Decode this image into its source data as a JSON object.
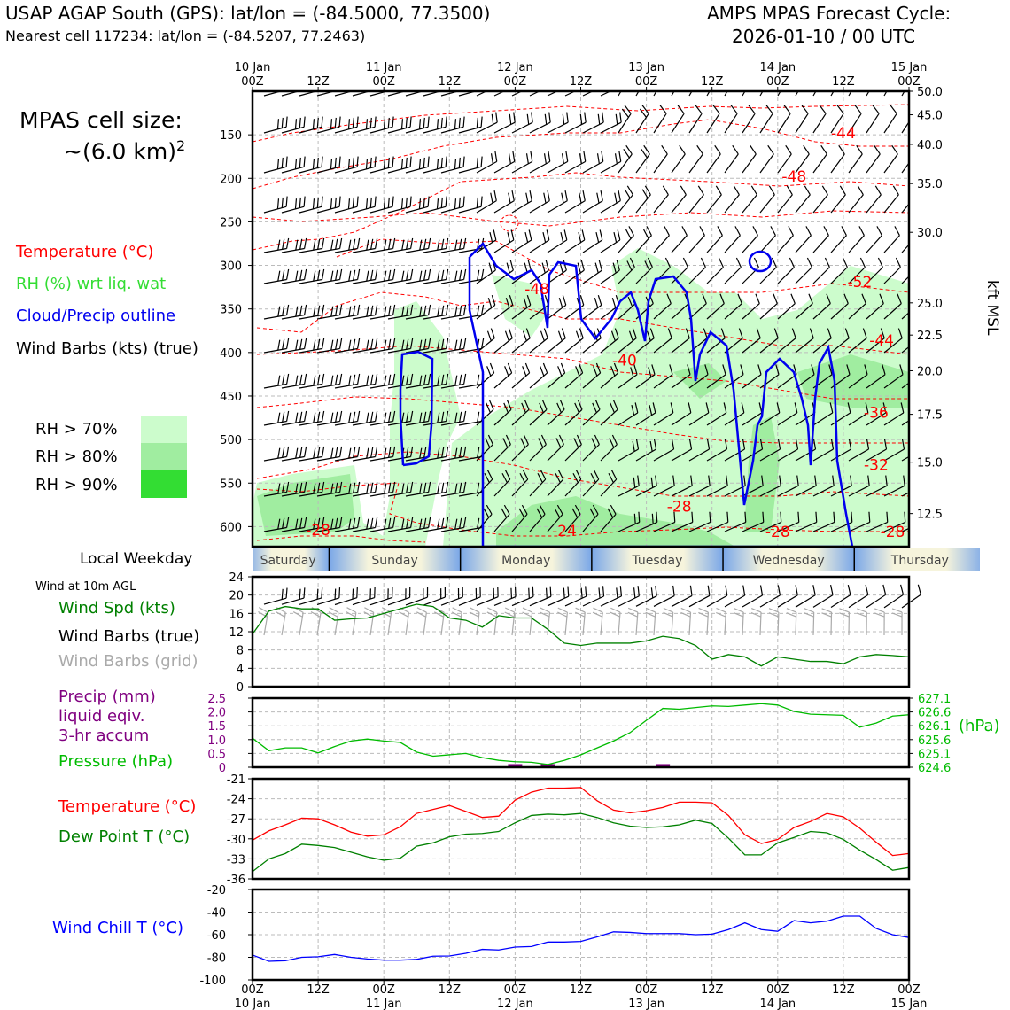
{
  "header": {
    "station": "USAP AGAP South (GPS): lat/lon = (-84.5000, 77.3500)",
    "nearest": "Nearest cell 117234: lat/lon = (-84.5207, 77.2463)",
    "model_line1": "AMPS MPAS Forecast Cycle:",
    "model_line2": "2026-01-10 / 00 UTC"
  },
  "legend": {
    "cell_size_line1": "MPAS cell size:",
    "cell_size_prefix": "~(6.0 km)",
    "cell_size_exp": "2",
    "temperature": "Temperature (°C)",
    "rh": "RH (%) wrt liq. wat",
    "cloud": "Cloud/Precip outline",
    "wind": "Wind Barbs (kts) (true)",
    "rh70": "RH > 70%",
    "rh80": "RH > 80%",
    "rh90": "RH > 90%",
    "weekday_title": "Local Weekday",
    "wind10m": "Wind at 10m AGL",
    "wind_spd": "Wind Spd (kts)",
    "wind_barbs_true": "Wind Barbs (true)",
    "wind_barbs_grid": "Wind Barbs (grid)",
    "precip1": "Precip (mm)",
    "precip2": "liquid eqiv.",
    "precip3": "3-hr accum",
    "pressure": "Pressure (hPa)",
    "temp2": "Temperature (°C)",
    "dewpoint": "Dew Point T (°C)",
    "windchill": "Wind Chill T (°C)",
    "kft": "kft MSL",
    "hpa": "(hPa)"
  },
  "colors": {
    "temperature": "#ff0000",
    "rh_label": "#33dd33",
    "cloud": "#0000ee",
    "rh70": "#ccfccc",
    "rh80": "#a0eda0",
    "rh90": "#33dd33",
    "wind_spd": "#008000",
    "precip": "#800080",
    "pressure": "#00bb00",
    "dewpoint": "#008000",
    "windchill": "#0000ff",
    "grid_barbs": "#aaaaaa"
  },
  "chart_data": [
    {
      "type": "time-height",
      "x_top_labels": [
        [
          "10 Jan",
          "00Z"
        ],
        [
          "",
          "12Z"
        ],
        [
          "11 Jan",
          "00Z"
        ],
        [
          "",
          "12Z"
        ],
        [
          "12 Jan",
          "00Z"
        ],
        [
          "",
          "12Z"
        ],
        [
          "13 Jan",
          "00Z"
        ],
        [
          "",
          "12Z"
        ],
        [
          "14 Jan",
          "00Z"
        ],
        [
          "",
          "12Z"
        ],
        [
          "15 Jan",
          "00Z"
        ]
      ],
      "pressure_ticks": [
        150,
        200,
        250,
        300,
        350,
        400,
        450,
        500,
        550,
        600
      ],
      "height_ticks": [
        "50.0",
        "45.0",
        "40.0",
        "35.0",
        "30.0",
        "25.0",
        "22.5",
        "20.0",
        "17.5",
        "15.0",
        "12.5"
      ],
      "height_tick_pressures": [
        100,
        127,
        161,
        206,
        262,
        343,
        380,
        421,
        471,
        526,
        585
      ],
      "ylim_hPa": [
        100,
        623
      ],
      "temperature_labels": [
        {
          "t": 108,
          "p": 154,
          "v": "-44"
        },
        {
          "t": 99,
          "p": 204,
          "v": "-48"
        },
        {
          "t": 52,
          "p": 333,
          "v": "-48"
        },
        {
          "t": 111,
          "p": 325,
          "v": "-52"
        },
        {
          "t": 115,
          "p": 392,
          "v": "-44"
        },
        {
          "t": 68,
          "p": 415,
          "v": "-40"
        },
        {
          "t": 114,
          "p": 475,
          "v": "-36"
        },
        {
          "t": 114,
          "p": 535,
          "v": "-32"
        },
        {
          "t": 78,
          "p": 583,
          "v": "-28"
        },
        {
          "t": 12,
          "p": 610,
          "v": "-28"
        },
        {
          "t": 57,
          "p": 611,
          "v": "-24"
        },
        {
          "t": 96,
          "p": 612,
          "v": "-28"
        },
        {
          "t": 117,
          "p": 612,
          "v": "-28"
        }
      ],
      "cloud_outline_note": "blue cloud/precip outline contours"
    },
    {
      "type": "weekday-band",
      "days": [
        "Saturday",
        "Sunday",
        "Monday",
        "Tuesday",
        "Wednesday",
        "Thursday"
      ],
      "day_boundaries_hours": [
        -1,
        14,
        38,
        62,
        86,
        110,
        134
      ]
    },
    {
      "type": "line",
      "title": "Wind Spd (kts)",
      "ylim": [
        0,
        24
      ],
      "yticks": [
        0,
        4,
        8,
        12,
        16,
        20,
        24
      ],
      "x_hours": [
        0,
        3,
        6,
        9,
        12,
        15,
        18,
        21,
        24,
        27,
        30,
        33,
        36,
        39,
        42,
        45,
        48,
        51,
        54,
        57,
        60,
        63,
        66,
        69,
        72,
        75,
        78,
        81,
        84,
        87,
        90,
        93,
        96,
        99,
        102,
        105,
        108,
        111,
        114,
        117,
        120
      ],
      "values": [
        11.5,
        16.5,
        17.5,
        17,
        17,
        14.5,
        14.8,
        15,
        16,
        17,
        18,
        17.5,
        15,
        14.5,
        13,
        15.5,
        15,
        15,
        12.5,
        9.5,
        9,
        9.5,
        9.5,
        9.5,
        10,
        11,
        10.5,
        9,
        6,
        7,
        6.5,
        4.5,
        6.5,
        6,
        5.5,
        5.5,
        5,
        6.5,
        7,
        6.8,
        6.5
      ]
    },
    {
      "type": "line",
      "title": "Pressure (hPa)",
      "precip_ylim": [
        0,
        2.5
      ],
      "precip_yticks": [
        0,
        0.5,
        1.0,
        1.5,
        2.0,
        2.5
      ],
      "pressure_ylim": [
        624.6,
        627.1
      ],
      "pressure_yticks": [
        624.6,
        625.1,
        625.6,
        626.1,
        626.6,
        627.1
      ],
      "precip_mm": {
        "x_hours": [
          48,
          54,
          75
        ],
        "values": [
          0.05,
          0.05,
          0.05
        ]
      },
      "x_hours": [
        0,
        3,
        6,
        9,
        12,
        15,
        18,
        21,
        24,
        27,
        30,
        33,
        36,
        39,
        42,
        45,
        48,
        51,
        54,
        57,
        60,
        63,
        66,
        69,
        72,
        75,
        78,
        81,
        84,
        87,
        90,
        93,
        96,
        99,
        102,
        105,
        108,
        111,
        114,
        117,
        120
      ],
      "values": [
        625.65,
        625.2,
        625.3,
        625.3,
        625.12,
        625.35,
        625.55,
        625.62,
        625.55,
        625.5,
        625.15,
        625.0,
        625.05,
        625.1,
        624.95,
        624.85,
        624.8,
        624.78,
        624.7,
        624.85,
        625.05,
        625.3,
        625.55,
        625.85,
        626.3,
        626.73,
        626.7,
        626.76,
        626.82,
        626.8,
        626.85,
        626.9,
        626.85,
        626.62,
        626.52,
        626.5,
        626.48,
        626.05,
        626.2,
        626.45,
        626.5
      ]
    },
    {
      "type": "line",
      "title": "Temperature (°C)",
      "ylim": [
        -36,
        -21
      ],
      "yticks": [
        -21,
        -24,
        -27,
        -30,
        -33,
        -36
      ],
      "x_hours": [
        0,
        3,
        6,
        9,
        12,
        15,
        18,
        21,
        24,
        27,
        30,
        33,
        36,
        39,
        42,
        45,
        48,
        51,
        54,
        57,
        60,
        63,
        66,
        69,
        72,
        75,
        78,
        81,
        84,
        87,
        90,
        93,
        96,
        99,
        102,
        105,
        108,
        111,
        114,
        117,
        120
      ],
      "series": [
        {
          "name": "Temperature (°C)",
          "values": [
            -30.2,
            -28.8,
            -27.9,
            -26.9,
            -27,
            -27.9,
            -29,
            -29.6,
            -29.4,
            -28.2,
            -26.2,
            -25.6,
            -25,
            -25.9,
            -26.8,
            -26.6,
            -24.2,
            -23,
            -22.4,
            -22.4,
            -22.3,
            -24.3,
            -25.7,
            -26.1,
            -25.8,
            -25.3,
            -24.5,
            -24.5,
            -24.6,
            -26.5,
            -29.4,
            -30.7,
            -30.1,
            -28.3,
            -27.4,
            -26.2,
            -26.7,
            -28.4,
            -30.5,
            -32.5,
            -32.2
          ]
        },
        {
          "name": "Dew Point T (°C)",
          "values": [
            -34.9,
            -33,
            -32.2,
            -30.8,
            -31,
            -31.3,
            -32,
            -32.7,
            -33.2,
            -32.9,
            -31.1,
            -30.6,
            -29.7,
            -29.3,
            -29.2,
            -28.9,
            -27.6,
            -26.5,
            -26.3,
            -26.4,
            -26.2,
            -26.8,
            -27.6,
            -28.1,
            -28.3,
            -28.2,
            -27.9,
            -27.2,
            -27.7,
            -29.9,
            -32.4,
            -32.4,
            -30.6,
            -29.8,
            -28.9,
            -29.1,
            -30.1,
            -31.7,
            -33.1,
            -34.7,
            -34.3
          ]
        }
      ]
    },
    {
      "type": "line",
      "title": "Wind Chill T (°C)",
      "ylim": [
        -100,
        -20
      ],
      "yticks": [
        -20,
        -40,
        -60,
        -80,
        -100
      ],
      "x_hours": [
        0,
        3,
        6,
        9,
        12,
        15,
        18,
        21,
        24,
        27,
        30,
        33,
        36,
        39,
        42,
        45,
        48,
        51,
        54,
        57,
        60,
        63,
        66,
        69,
        72,
        75,
        78,
        81,
        84,
        87,
        90,
        93,
        96,
        99,
        102,
        105,
        108,
        111,
        114,
        117,
        120
      ],
      "values": [
        -78,
        -83.5,
        -83,
        -80,
        -79.5,
        -77.5,
        -80,
        -81.5,
        -82.5,
        -82.5,
        -81.8,
        -79,
        -78.8,
        -76.5,
        -73,
        -73.5,
        -71,
        -70.5,
        -66.5,
        -66.5,
        -66,
        -62,
        -57.5,
        -58,
        -59,
        -59,
        -59,
        -60,
        -59.5,
        -55.5,
        -49.5,
        -55.5,
        -57,
        -47.5,
        -49.5,
        -48,
        -43.5,
        -43.5,
        -54.5,
        -60,
        -62.5
      ]
    },
    {
      "type": "x-axis",
      "bottom_labels": [
        [
          "00Z",
          "10 Jan"
        ],
        [
          "12Z",
          ""
        ],
        [
          "00Z",
          "11 Jan"
        ],
        [
          "12Z",
          ""
        ],
        [
          "00Z",
          "12 Jan"
        ],
        [
          "12Z",
          ""
        ],
        [
          "00Z",
          "13 Jan"
        ],
        [
          "12Z",
          ""
        ],
        [
          "00Z",
          "14 Jan"
        ],
        [
          "12Z",
          ""
        ],
        [
          "00Z",
          "15 Jan"
        ]
      ]
    }
  ]
}
